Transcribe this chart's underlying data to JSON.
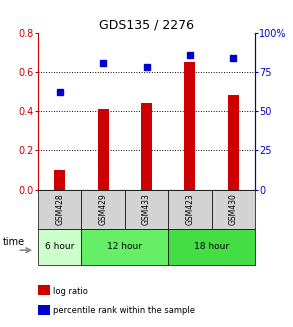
{
  "title": "GDS135 / 2276",
  "samples": [
    "GSM428",
    "GSM429",
    "GSM433",
    "GSM423",
    "GSM430"
  ],
  "log_ratio": [
    0.1,
    0.41,
    0.44,
    0.65,
    0.48
  ],
  "percentile_rank": [
    62,
    81,
    78,
    86,
    84
  ],
  "bar_color": "#cc0000",
  "dot_color": "#0000cc",
  "ylim_left": [
    0,
    0.8
  ],
  "ylim_right": [
    0,
    100
  ],
  "yticks_left": [
    0,
    0.2,
    0.4,
    0.6,
    0.8
  ],
  "yticks_right": [
    0,
    25,
    50,
    75,
    100
  ],
  "ytick_labels_right": [
    "0",
    "25",
    "50",
    "75",
    "100%"
  ],
  "time_groups": [
    {
      "label": "6 hour",
      "count": 1,
      "color": "#ccffcc"
    },
    {
      "label": "12 hour",
      "count": 2,
      "color": "#66ee66"
    },
    {
      "label": "18 hour",
      "count": 2,
      "color": "#44dd44"
    }
  ],
  "legend_log_ratio": "log ratio",
  "legend_percentile": "percentile rank within the sample",
  "time_label": "time",
  "left_tick_color": "#cc0000",
  "right_tick_color": "#0000cc",
  "sample_cell_color": "#d3d3d3",
  "bar_width": 0.25
}
